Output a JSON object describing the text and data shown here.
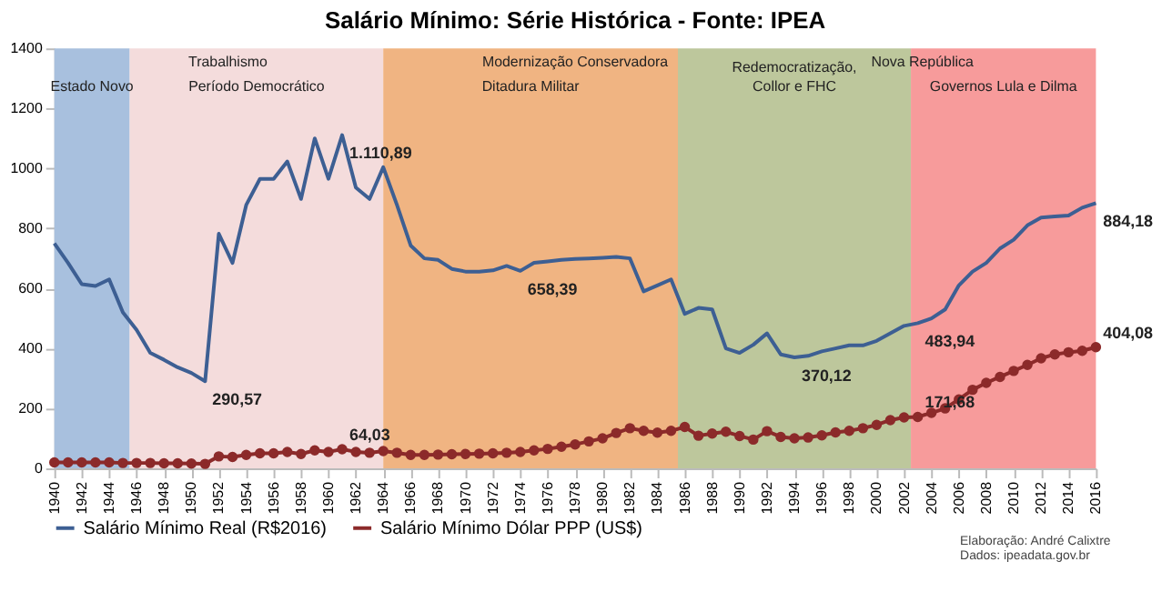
{
  "chart_data": {
    "type": "line",
    "title": "Salário Mínimo: Série Histórica - Fonte: IPEA",
    "x": [
      1940,
      1941,
      1942,
      1943,
      1944,
      1945,
      1946,
      1947,
      1948,
      1949,
      1950,
      1951,
      1952,
      1953,
      1954,
      1955,
      1956,
      1957,
      1958,
      1959,
      1960,
      1961,
      1962,
      1963,
      1964,
      1965,
      1966,
      1967,
      1968,
      1969,
      1970,
      1971,
      1972,
      1973,
      1974,
      1975,
      1976,
      1977,
      1978,
      1979,
      1980,
      1981,
      1982,
      1983,
      1984,
      1985,
      1986,
      1987,
      1988,
      1989,
      1990,
      1991,
      1992,
      1993,
      1994,
      1995,
      1996,
      1997,
      1998,
      1999,
      2000,
      2001,
      2002,
      2003,
      2004,
      2005,
      2006,
      2007,
      2008,
      2009,
      2010,
      2011,
      2012,
      2013,
      2014,
      2015,
      2016
    ],
    "series": [
      {
        "name": "Salário Mínimo Real (R$2016)",
        "color": "#3d5f93",
        "marker": "none",
        "values": [
          750,
          685,
          614,
          608,
          630,
          520,
          462,
          385,
          362,
          337,
          318,
          290.57,
          782,
          685,
          878,
          965,
          965,
          1023,
          898,
          1100,
          965,
          1110.89,
          936,
          898,
          1004,
          878,
          743,
          700,
          695,
          665,
          656,
          656,
          660,
          675,
          658.39,
          685,
          690,
          695,
          698,
          700,
          702,
          705,
          700,
          590,
          610,
          630,
          515,
          535,
          530,
          400,
          385,
          412,
          450,
          380,
          370.12,
          375,
          390,
          400,
          410,
          410,
          425,
          450,
          475,
          483.94,
          500,
          530,
          610,
          656,
          685,
          733,
          762,
          810,
          836,
          840,
          843,
          869,
          884.18
        ],
        "value_labels": [
          null,
          null,
          null,
          null,
          null,
          null,
          null,
          null,
          null,
          null,
          null,
          "290,57",
          null,
          null,
          null,
          null,
          null,
          null,
          null,
          null,
          null,
          "1.110,89",
          null,
          null,
          null,
          null,
          null,
          null,
          null,
          null,
          null,
          null,
          null,
          null,
          "658,39",
          null,
          null,
          null,
          null,
          null,
          null,
          null,
          null,
          null,
          null,
          null,
          null,
          null,
          null,
          null,
          null,
          null,
          null,
          null,
          "370,12",
          null,
          null,
          null,
          null,
          null,
          null,
          null,
          null,
          "483,94",
          null,
          null,
          null,
          null,
          null,
          null,
          null,
          null,
          null,
          null,
          null,
          null,
          "884,18"
        ]
      },
      {
        "name": "Salário Mínimo Dólar PPP (US$)",
        "color": "#8c2a2a",
        "marker": "circle",
        "values": [
          20,
          20,
          20,
          20,
          20,
          18,
          18,
          18,
          17,
          17,
          16,
          15,
          40,
          38,
          45,
          50,
          50,
          55,
          48,
          60,
          55,
          64.03,
          55,
          52,
          58,
          52,
          45,
          45,
          46,
          47,
          48,
          49,
          50,
          52,
          55,
          60,
          65,
          72,
          80,
          90,
          100,
          118,
          134,
          125,
          119,
          125,
          138,
          109,
          116,
          122,
          108,
          96,
          124,
          105,
          100,
          103,
          110,
          120,
          125,
          134,
          145,
          161,
          170,
          171.68,
          185,
          200,
          230,
          262,
          285,
          305,
          325,
          345,
          367,
          380,
          387,
          392,
          404.08
        ],
        "value_labels": [
          null,
          null,
          null,
          null,
          null,
          null,
          null,
          null,
          null,
          null,
          null,
          null,
          null,
          null,
          null,
          null,
          null,
          null,
          null,
          null,
          null,
          "64,03",
          null,
          null,
          null,
          null,
          null,
          null,
          null,
          null,
          null,
          null,
          null,
          null,
          null,
          null,
          null,
          null,
          null,
          null,
          null,
          null,
          null,
          null,
          null,
          null,
          null,
          null,
          null,
          null,
          null,
          null,
          null,
          null,
          null,
          null,
          null,
          null,
          null,
          null,
          null,
          null,
          null,
          "171,68",
          null,
          null,
          null,
          null,
          null,
          null,
          null,
          null,
          null,
          null,
          null,
          null,
          "404,08"
        ]
      }
    ],
    "xlim": [
      1940,
      2016
    ],
    "xticks": [
      1940,
      1942,
      1944,
      1946,
      1948,
      1950,
      1952,
      1954,
      1956,
      1958,
      1960,
      1962,
      1964,
      1966,
      1968,
      1970,
      1972,
      1974,
      1976,
      1978,
      1980,
      1982,
      1984,
      1986,
      1988,
      1990,
      1992,
      1994,
      1996,
      1998,
      2000,
      2002,
      2004,
      2006,
      2008,
      2010,
      2012,
      2014,
      2016
    ],
    "ylim": [
      0,
      1400
    ],
    "yticks": [
      0,
      200,
      400,
      600,
      800,
      1000,
      1200,
      1400
    ],
    "grid": false,
    "legend": "bottom",
    "bands": [
      {
        "axis": "x",
        "from": 1940,
        "to": 1945.5,
        "label": "Estado Novo",
        "color": "#a8c0de"
      },
      {
        "axis": "x",
        "from": 1945.5,
        "to": 1964,
        "label": "Período Democrático",
        "color": "#f4dcdc"
      },
      {
        "axis": "x",
        "from": 1964,
        "to": 1985.5,
        "label": "Ditadura Militar",
        "color": "#f0b482"
      },
      {
        "axis": "x",
        "from": 1985.5,
        "to": 2002.5,
        "label": "Redemocratização,\nCollor e FHC",
        "color": "#bdc79c"
      },
      {
        "axis": "x",
        "from": 2002.5,
        "to": 2016,
        "label": "Governos Lula e Dilma",
        "color": "#f79b9b"
      }
    ],
    "annotations": [
      "Trabalhismo",
      "Modernização Conservadora",
      "Nova República",
      "Elaboração: André Calixtre",
      "Dados: ipeadata.gov.br"
    ]
  }
}
